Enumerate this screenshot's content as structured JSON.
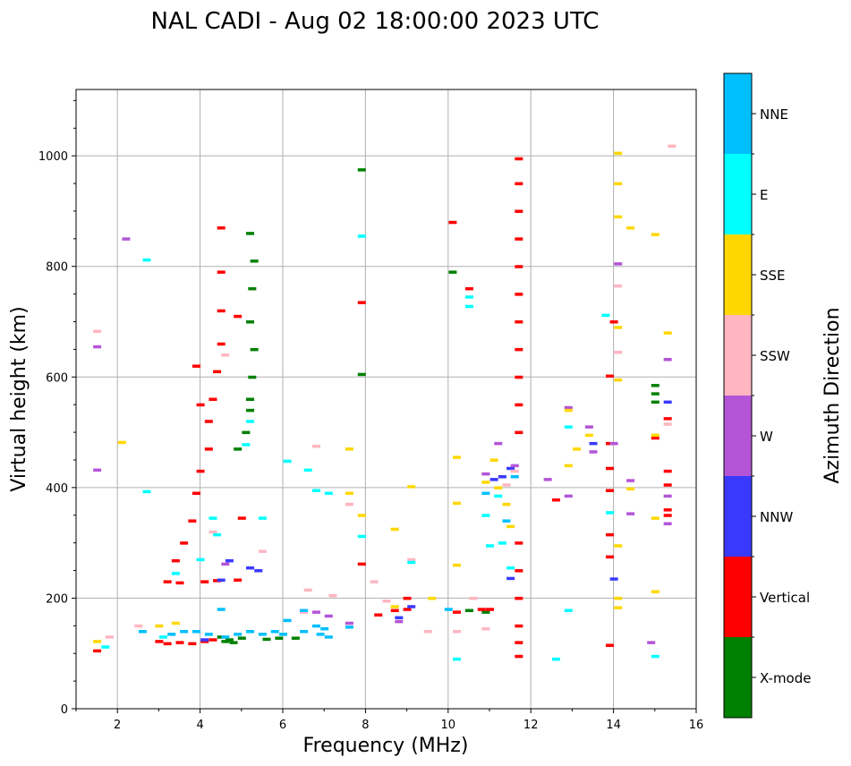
{
  "chart_data": {
    "type": "scatter",
    "title": "NAL CADI - Aug 02 18:00:00 2023 UTC",
    "xlabel": "Frequency (MHz)",
    "ylabel": "Virtual height (km)",
    "xlim": [
      1,
      16
    ],
    "ylim": [
      0,
      1120
    ],
    "xticks": [
      2,
      4,
      6,
      8,
      10,
      12,
      14,
      16
    ],
    "yticks": [
      0,
      200,
      400,
      600,
      800,
      1000
    ],
    "grid": true,
    "colorbar": {
      "title": "Azimuth Direction",
      "categories": [
        {
          "name": "X-mode",
          "color": "#008000"
        },
        {
          "name": "Vertical",
          "color": "#ff0000"
        },
        {
          "name": "NNW",
          "color": "#3a3aff"
        },
        {
          "name": "W",
          "color": "#b455d8"
        },
        {
          "name": "SSW",
          "color": "#ffb6c1"
        },
        {
          "name": "SSE",
          "color": "#ffd700"
        },
        {
          "name": "E",
          "color": "#00ffff"
        },
        {
          "name": "NNE",
          "color": "#00bfff"
        }
      ]
    },
    "series": [
      {
        "name": "X-mode",
        "points": [
          [
            5.2,
            560
          ],
          [
            5.2,
            540
          ],
          [
            5.25,
            600
          ],
          [
            5.3,
            650
          ],
          [
            5.2,
            700
          ],
          [
            5.25,
            760
          ],
          [
            5.3,
            810
          ],
          [
            5.2,
            860
          ],
          [
            5.1,
            500
          ],
          [
            4.9,
            470
          ],
          [
            4.7,
            125
          ],
          [
            4.6,
            122
          ],
          [
            4.8,
            120
          ],
          [
            4.5,
            130
          ],
          [
            5.0,
            128
          ],
          [
            5.6,
            126
          ],
          [
            5.9,
            128
          ],
          [
            6.3,
            128
          ],
          [
            7.9,
            975
          ],
          [
            7.9,
            605
          ],
          [
            10.1,
            790
          ],
          [
            10.9,
            175
          ],
          [
            10.5,
            178
          ],
          [
            15.0,
            585
          ],
          [
            15.0,
            570
          ],
          [
            15.0,
            555
          ]
        ]
      },
      {
        "name": "Vertical",
        "points": [
          [
            3.0,
            122
          ],
          [
            3.2,
            118
          ],
          [
            3.5,
            120
          ],
          [
            3.8,
            118
          ],
          [
            4.1,
            122
          ],
          [
            4.3,
            125
          ],
          [
            3.2,
            230
          ],
          [
            3.5,
            228
          ],
          [
            4.1,
            230
          ],
          [
            4.4,
            232
          ],
          [
            4.9,
            233
          ],
          [
            3.4,
            268
          ],
          [
            3.6,
            300
          ],
          [
            3.8,
            340
          ],
          [
            3.9,
            390
          ],
          [
            4.0,
            430
          ],
          [
            4.2,
            470
          ],
          [
            4.2,
            520
          ],
          [
            4.3,
            560
          ],
          [
            4.4,
            610
          ],
          [
            4.5,
            660
          ],
          [
            4.5,
            720
          ],
          [
            4.5,
            790
          ],
          [
            4.5,
            870
          ],
          [
            4.0,
            550
          ],
          [
            3.9,
            620
          ],
          [
            5.0,
            345
          ],
          [
            4.9,
            710
          ],
          [
            7.9,
            735
          ],
          [
            7.9,
            262
          ],
          [
            8.3,
            170
          ],
          [
            8.7,
            178
          ],
          [
            9.0,
            180
          ],
          [
            9.0,
            200
          ],
          [
            10.1,
            880
          ],
          [
            10.2,
            175
          ],
          [
            10.5,
            760
          ],
          [
            10.8,
            180
          ],
          [
            11.0,
            180
          ],
          [
            11.7,
            995
          ],
          [
            11.7,
            950
          ],
          [
            11.7,
            900
          ],
          [
            11.7,
            850
          ],
          [
            11.7,
            800
          ],
          [
            11.7,
            750
          ],
          [
            11.7,
            700
          ],
          [
            11.7,
            650
          ],
          [
            11.7,
            600
          ],
          [
            11.7,
            550
          ],
          [
            11.7,
            500
          ],
          [
            11.7,
            300
          ],
          [
            11.7,
            250
          ],
          [
            11.7,
            200
          ],
          [
            11.7,
            150
          ],
          [
            11.7,
            120
          ],
          [
            11.7,
            95
          ],
          [
            12.6,
            378
          ],
          [
            13.9,
            602
          ],
          [
            14.0,
            700
          ],
          [
            13.9,
            480
          ],
          [
            13.9,
            435
          ],
          [
            13.9,
            395
          ],
          [
            13.9,
            315
          ],
          [
            13.9,
            275
          ],
          [
            13.9,
            115
          ],
          [
            15.0,
            490
          ],
          [
            15.3,
            525
          ],
          [
            15.3,
            430
          ],
          [
            15.3,
            405
          ],
          [
            15.3,
            360
          ],
          [
            15.3,
            350
          ],
          [
            1.5,
            105
          ]
        ]
      },
      {
        "name": "NNW",
        "points": [
          [
            4.7,
            268
          ],
          [
            5.2,
            255
          ],
          [
            5.4,
            250
          ],
          [
            4.5,
            233
          ],
          [
            11.1,
            415
          ],
          [
            11.5,
            236
          ],
          [
            13.5,
            480
          ],
          [
            14.0,
            235
          ],
          [
            15.3,
            555
          ],
          [
            4.1,
            125
          ],
          [
            8.8,
            165
          ],
          [
            9.1,
            185
          ],
          [
            11.5,
            435
          ],
          [
            11.3,
            420
          ]
        ]
      },
      {
        "name": "W",
        "points": [
          [
            1.5,
            655
          ],
          [
            1.5,
            432
          ],
          [
            2.2,
            850
          ],
          [
            4.6,
            262
          ],
          [
            6.8,
            175
          ],
          [
            7.1,
            168
          ],
          [
            7.6,
            155
          ],
          [
            8.8,
            158
          ],
          [
            10.9,
            425
          ],
          [
            11.2,
            480
          ],
          [
            12.4,
            415
          ],
          [
            12.9,
            545
          ],
          [
            12.9,
            385
          ],
          [
            13.4,
            510
          ],
          [
            13.5,
            465
          ],
          [
            14.1,
            805
          ],
          [
            14.0,
            480
          ],
          [
            14.4,
            413
          ],
          [
            14.4,
            353
          ],
          [
            14.9,
            120
          ],
          [
            15.3,
            632
          ],
          [
            15.3,
            385
          ],
          [
            15.3,
            335
          ],
          [
            11.6,
            440
          ]
        ]
      },
      {
        "name": "SSW",
        "points": [
          [
            1.5,
            683
          ],
          [
            1.8,
            130
          ],
          [
            2.5,
            150
          ],
          [
            4.3,
            320
          ],
          [
            4.6,
            640
          ],
          [
            5.5,
            285
          ],
          [
            6.5,
            175
          ],
          [
            6.6,
            215
          ],
          [
            6.8,
            475
          ],
          [
            7.2,
            205
          ],
          [
            7.6,
            370
          ],
          [
            8.2,
            230
          ],
          [
            8.5,
            195
          ],
          [
            9.5,
            140
          ],
          [
            10.2,
            140
          ],
          [
            10.9,
            145
          ],
          [
            11.4,
            405
          ],
          [
            11.6,
            430
          ],
          [
            14.1,
            765
          ],
          [
            14.1,
            645
          ],
          [
            15.4,
            1018
          ],
          [
            15.3,
            515
          ],
          [
            10.6,
            200
          ],
          [
            9.1,
            270
          ]
        ]
      },
      {
        "name": "SSE",
        "points": [
          [
            1.5,
            122
          ],
          [
            2.1,
            482
          ],
          [
            3.0,
            150
          ],
          [
            3.4,
            155
          ],
          [
            7.6,
            470
          ],
          [
            7.6,
            390
          ],
          [
            7.9,
            350
          ],
          [
            8.7,
            325
          ],
          [
            9.1,
            402
          ],
          [
            9.6,
            200
          ],
          [
            10.2,
            455
          ],
          [
            10.2,
            372
          ],
          [
            10.2,
            260
          ],
          [
            10.9,
            410
          ],
          [
            11.1,
            450
          ],
          [
            11.2,
            400
          ],
          [
            11.4,
            370
          ],
          [
            11.5,
            330
          ],
          [
            12.9,
            440
          ],
          [
            13.1,
            470
          ],
          [
            13.4,
            495
          ],
          [
            14.1,
            1005
          ],
          [
            14.1,
            950
          ],
          [
            14.1,
            890
          ],
          [
            14.1,
            690
          ],
          [
            14.1,
            595
          ],
          [
            14.1,
            295
          ],
          [
            14.1,
            200
          ],
          [
            14.1,
            183
          ],
          [
            14.4,
            870
          ],
          [
            14.4,
            398
          ],
          [
            15.0,
            858
          ],
          [
            15.0,
            495
          ],
          [
            15.0,
            345
          ],
          [
            15.0,
            212
          ],
          [
            15.3,
            680
          ],
          [
            12.9,
            540
          ],
          [
            8.7,
            185
          ]
        ]
      },
      {
        "name": "E",
        "points": [
          [
            1.7,
            112
          ],
          [
            2.7,
            812
          ],
          [
            2.7,
            393
          ],
          [
            3.1,
            130
          ],
          [
            3.4,
            245
          ],
          [
            4.3,
            345
          ],
          [
            4.4,
            315
          ],
          [
            4.0,
            270
          ],
          [
            5.1,
            478
          ],
          [
            5.2,
            520
          ],
          [
            5.5,
            345
          ],
          [
            6.1,
            448
          ],
          [
            6.6,
            432
          ],
          [
            6.8,
            395
          ],
          [
            7.1,
            390
          ],
          [
            7.9,
            855
          ],
          [
            7.9,
            312
          ],
          [
            10.2,
            90
          ],
          [
            10.5,
            745
          ],
          [
            10.5,
            728
          ],
          [
            10.9,
            350
          ],
          [
            11.0,
            295
          ],
          [
            11.2,
            385
          ],
          [
            11.5,
            255
          ],
          [
            12.6,
            90
          ],
          [
            12.9,
            510
          ],
          [
            12.9,
            178
          ],
          [
            13.8,
            712
          ],
          [
            13.9,
            355
          ],
          [
            15.0,
            95
          ],
          [
            9.1,
            265
          ],
          [
            11.3,
            300
          ]
        ]
      },
      {
        "name": "NNE",
        "points": [
          [
            2.6,
            140
          ],
          [
            3.3,
            135
          ],
          [
            3.6,
            140
          ],
          [
            3.9,
            140
          ],
          [
            4.2,
            135
          ],
          [
            4.6,
            130
          ],
          [
            4.9,
            135
          ],
          [
            5.2,
            140
          ],
          [
            5.5,
            135
          ],
          [
            5.8,
            140
          ],
          [
            6.0,
            135
          ],
          [
            6.5,
            140
          ],
          [
            6.8,
            150
          ],
          [
            7.0,
            145
          ],
          [
            6.1,
            160
          ],
          [
            6.5,
            178
          ],
          [
            6.9,
            135
          ],
          [
            7.1,
            130
          ],
          [
            7.6,
            148
          ],
          [
            4.5,
            180
          ],
          [
            10.0,
            180
          ],
          [
            10.9,
            390
          ],
          [
            11.4,
            340
          ],
          [
            11.6,
            420
          ]
        ]
      }
    ]
  }
}
